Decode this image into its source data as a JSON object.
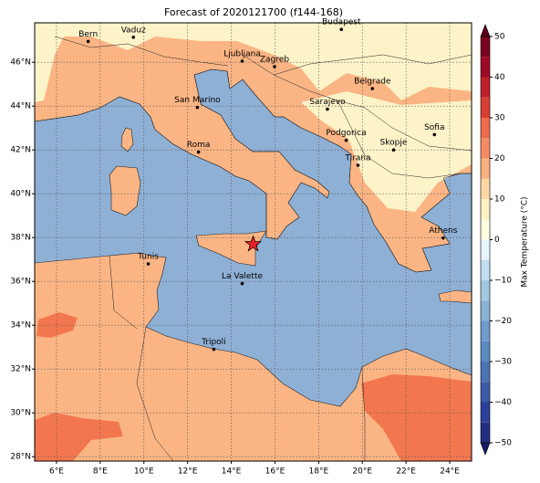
{
  "title": "Forecast of 2020121700 (f144-168)",
  "map": {
    "lonlim": [
      5,
      25
    ],
    "latlim": [
      27.8,
      47.8
    ],
    "lon_ticks": [
      {
        "value": 6,
        "label": "6°E"
      },
      {
        "value": 8,
        "label": "8°E"
      },
      {
        "value": 10,
        "label": "10°E"
      },
      {
        "value": 12,
        "label": "12°E"
      },
      {
        "value": 14,
        "label": "14°E"
      },
      {
        "value": 16,
        "label": "16°E"
      },
      {
        "value": 18,
        "label": "18°E"
      },
      {
        "value": 20,
        "label": "20°E"
      },
      {
        "value": 22,
        "label": "22°E"
      },
      {
        "value": 24,
        "label": "24°E"
      }
    ],
    "lat_ticks": [
      {
        "value": 28,
        "label": "28°N"
      },
      {
        "value": 30,
        "label": "30°N"
      },
      {
        "value": 32,
        "label": "32°N"
      },
      {
        "value": 34,
        "label": "34°N"
      },
      {
        "value": 36,
        "label": "36°N"
      },
      {
        "value": 38,
        "label": "38°N"
      },
      {
        "value": 40,
        "label": "40°N"
      },
      {
        "value": 42,
        "label": "42°N"
      },
      {
        "value": 44,
        "label": "44°N"
      },
      {
        "value": 46,
        "label": "46°N"
      }
    ],
    "cities": [
      {
        "name": "Bern",
        "lon": 7.45,
        "lat": 46.95
      },
      {
        "name": "Vaduz",
        "lon": 9.52,
        "lat": 47.14
      },
      {
        "name": "Budapest",
        "lon": 19.04,
        "lat": 47.5
      },
      {
        "name": "Ljubljana",
        "lon": 14.5,
        "lat": 46.05
      },
      {
        "name": "Zagreb",
        "lon": 15.98,
        "lat": 45.8
      },
      {
        "name": "Belgrade",
        "lon": 20.46,
        "lat": 44.8
      },
      {
        "name": "Sarajevo",
        "lon": 18.4,
        "lat": 43.86
      },
      {
        "name": "San Marino",
        "lon": 12.45,
        "lat": 43.94
      },
      {
        "name": "Sofia",
        "lon": 23.3,
        "lat": 42.7
      },
      {
        "name": "Podgorica",
        "lon": 19.26,
        "lat": 42.44
      },
      {
        "name": "Skopje",
        "lon": 21.43,
        "lat": 42.0
      },
      {
        "name": "Roma",
        "lon": 12.5,
        "lat": 41.9
      },
      {
        "name": "Tirana",
        "lon": 19.8,
        "lat": 41.3
      },
      {
        "name": "Athens",
        "lon": 23.7,
        "lat": 37.98
      },
      {
        "name": "Tunis",
        "lon": 10.2,
        "lat": 36.8
      },
      {
        "name": "La Valette",
        "lon": 14.5,
        "lat": 35.9
      },
      {
        "name": "Tripoli",
        "lon": 13.2,
        "lat": 32.9
      }
    ],
    "marker": {
      "lon": 15.0,
      "lat": 37.7,
      "color": "#e8202a"
    }
  },
  "colorbar": {
    "label": "Max Temperature (°C)",
    "bounds": [
      -50,
      -45,
      -40,
      -35,
      -30,
      -25,
      -20,
      -15,
      -10,
      -5,
      0,
      5,
      10,
      15,
      20,
      25,
      30,
      35,
      40,
      45,
      50
    ],
    "colors": [
      "#232e80",
      "#2c3f9a",
      "#3b5ba8",
      "#4a74b4",
      "#5b8ac0",
      "#6f9ccb",
      "#88b3d6",
      "#a0c8e0",
      "#c0def0",
      "#e6f4fb",
      "#fffde0",
      "#fdf2c4",
      "#fcd7a4",
      "#fbb082",
      "#f58b64",
      "#ee6a4c",
      "#d83e33",
      "#bf1f28",
      "#9e0a25",
      "#7a0020"
    ],
    "under_color": "#141c66",
    "over_color": "#5a001a",
    "ticks": [
      {
        "value": -50,
        "label": "−50"
      },
      {
        "value": -40,
        "label": "−40"
      },
      {
        "value": -30,
        "label": "−30"
      },
      {
        "value": -20,
        "label": "−20"
      },
      {
        "value": -10,
        "label": "−10"
      },
      0,
      10,
      20,
      30,
      40,
      50
    ]
  }
}
